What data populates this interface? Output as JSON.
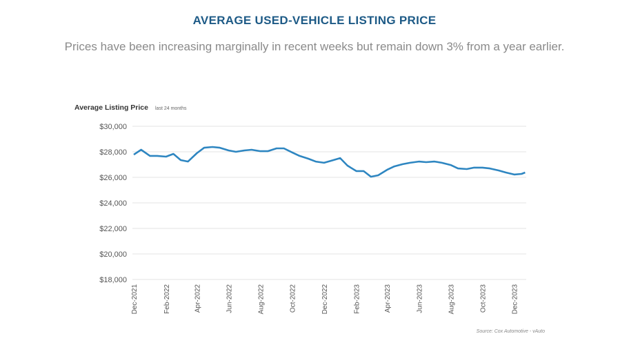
{
  "title": "AVERAGE USED-VEHICLE LISTING PRICE",
  "subtitle": "Prices have been increasing marginally in recent weeks but remain down 3% from a year earlier.",
  "chart_data": {
    "type": "line",
    "title": "Average Listing Price",
    "title_note": "last 24 months",
    "source": "Source: Cox Automotive - vAuto",
    "ylim": [
      18000,
      30000
    ],
    "yticks": [
      18000,
      20000,
      22000,
      24000,
      26000,
      28000,
      30000
    ],
    "ytick_labels": [
      "$18,000",
      "$20,000",
      "$22,000",
      "$24,000",
      "$26,000",
      "$28,000",
      "$30,000"
    ],
    "xticks": [
      "2021-12-01",
      "2022-02-01",
      "2022-04-01",
      "2022-06-01",
      "2022-08-01",
      "2022-10-01",
      "2022-12-01",
      "2023-02-01",
      "2023-04-01",
      "2023-06-01",
      "2023-08-01",
      "2023-10-01",
      "2023-12-01"
    ],
    "xtick_labels": [
      "Dec-2021",
      "Feb-2022",
      "Apr-2022",
      "Jun-2022",
      "Aug-2022",
      "Oct-2022",
      "Dec-2022",
      "Feb-2023",
      "Apr-2023",
      "Jun-2023",
      "Aug-2023",
      "Oct-2023",
      "Dec-2023"
    ],
    "grid": true,
    "color": "#2e86c1",
    "x": [
      "2021-12-01",
      "2021-12-15",
      "2022-01-01",
      "2022-01-15",
      "2022-02-01",
      "2022-02-15",
      "2022-03-01",
      "2022-03-15",
      "2022-04-01",
      "2022-04-15",
      "2022-05-01",
      "2022-05-15",
      "2022-06-01",
      "2022-06-15",
      "2022-07-01",
      "2022-07-15",
      "2022-08-01",
      "2022-08-15",
      "2022-09-01",
      "2022-09-15",
      "2022-10-01",
      "2022-10-15",
      "2022-11-01",
      "2022-11-15",
      "2022-12-01",
      "2022-12-15",
      "2023-01-01",
      "2023-01-15",
      "2023-02-01",
      "2023-02-15",
      "2023-03-01",
      "2023-03-15",
      "2023-04-01",
      "2023-04-15",
      "2023-05-01",
      "2023-05-15",
      "2023-06-01",
      "2023-06-15",
      "2023-07-01",
      "2023-07-15",
      "2023-08-01",
      "2023-08-15",
      "2023-09-01",
      "2023-09-15",
      "2023-10-01",
      "2023-10-15",
      "2023-11-01",
      "2023-11-15",
      "2023-12-01",
      "2023-12-15",
      "2023-12-22"
    ],
    "y": [
      27780,
      28160,
      27680,
      27680,
      27620,
      27840,
      27350,
      27240,
      27890,
      28320,
      28380,
      28320,
      28110,
      28000,
      28110,
      28160,
      28050,
      28050,
      28270,
      28270,
      27950,
      27680,
      27460,
      27240,
      27140,
      27300,
      27510,
      26920,
      26490,
      26490,
      26050,
      26160,
      26590,
      26860,
      27030,
      27140,
      27240,
      27190,
      27240,
      27140,
      26970,
      26700,
      26650,
      26760,
      26760,
      26700,
      26540,
      26380,
      26220,
      26270,
      26380
    ]
  }
}
